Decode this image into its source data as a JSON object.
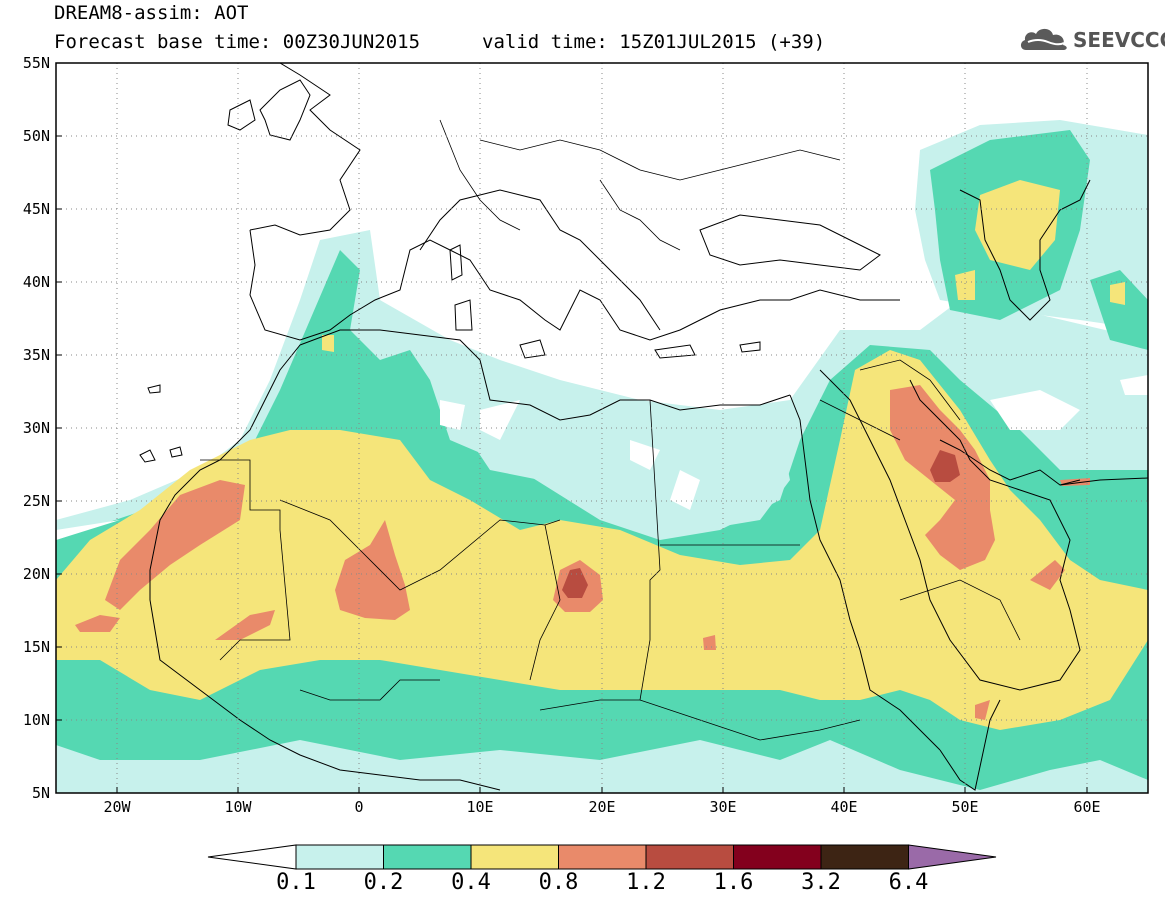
{
  "header": {
    "model_title": "DREAM8-assim: AOT",
    "base_time": "Forecast base time: 00Z30JUN2015",
    "valid_time": "valid time: 15Z01JUL2015 (+39)",
    "logo_text": "SEEVCCC",
    "logo_icon": "cloud-icon"
  },
  "map": {
    "lat_labels": [
      "55N",
      "50N",
      "45N",
      "40N",
      "35N",
      "30N",
      "25N",
      "20N",
      "15N",
      "10N",
      "5N"
    ],
    "lon_labels": [
      "20W",
      "10W",
      "0",
      "10E",
      "20E",
      "30E",
      "40E",
      "50E",
      "60E"
    ],
    "lat_range": [
      5,
      55
    ],
    "lon_range": [
      -25,
      65
    ],
    "grid": "dotted"
  },
  "colorbar": {
    "levels": [
      "0.1",
      "0.2",
      "0.4",
      "0.8",
      "1.2",
      "1.6",
      "3.2",
      "6.4"
    ],
    "colors": [
      "#ffffff",
      "#c7f1ec",
      "#55d8b2",
      "#f5e57a",
      "#e98a6a",
      "#b84c40",
      "#83001d",
      "#3d2414",
      "#9a6aa8"
    ]
  }
}
